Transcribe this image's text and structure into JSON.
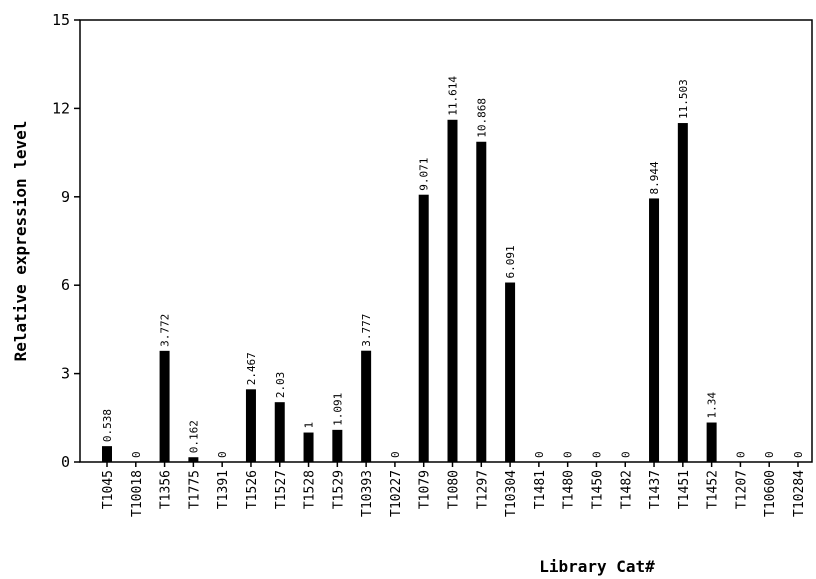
{
  "chart_data": {
    "type": "bar",
    "x_label": "Library Cat#",
    "y_label": "Relative expression level",
    "categories": [
      "T1045",
      "T10018",
      "T1356",
      "T1775",
      "T1391",
      "T1526",
      "T1527",
      "T1528",
      "T1529",
      "T10393",
      "T10227",
      "T1079",
      "T1080",
      "T1297",
      "T10304",
      "T1481",
      "T1480",
      "T1450",
      "T1482",
      "T1437",
      "T1451",
      "T1452",
      "T1207",
      "T10600",
      "T10284"
    ],
    "values": [
      0.538,
      0,
      3.772,
      0.162,
      0,
      2.467,
      2.03,
      1,
      1.091,
      3.777,
      0,
      9.071,
      11.614,
      10.868,
      6.091,
      0,
      0,
      0,
      0,
      8.944,
      11.503,
      1.34,
      0,
      0,
      0
    ],
    "color": "#000000",
    "ylim": [
      0,
      15
    ],
    "yticks": [
      0,
      3,
      6,
      9,
      12,
      15
    ],
    "grid": false
  }
}
